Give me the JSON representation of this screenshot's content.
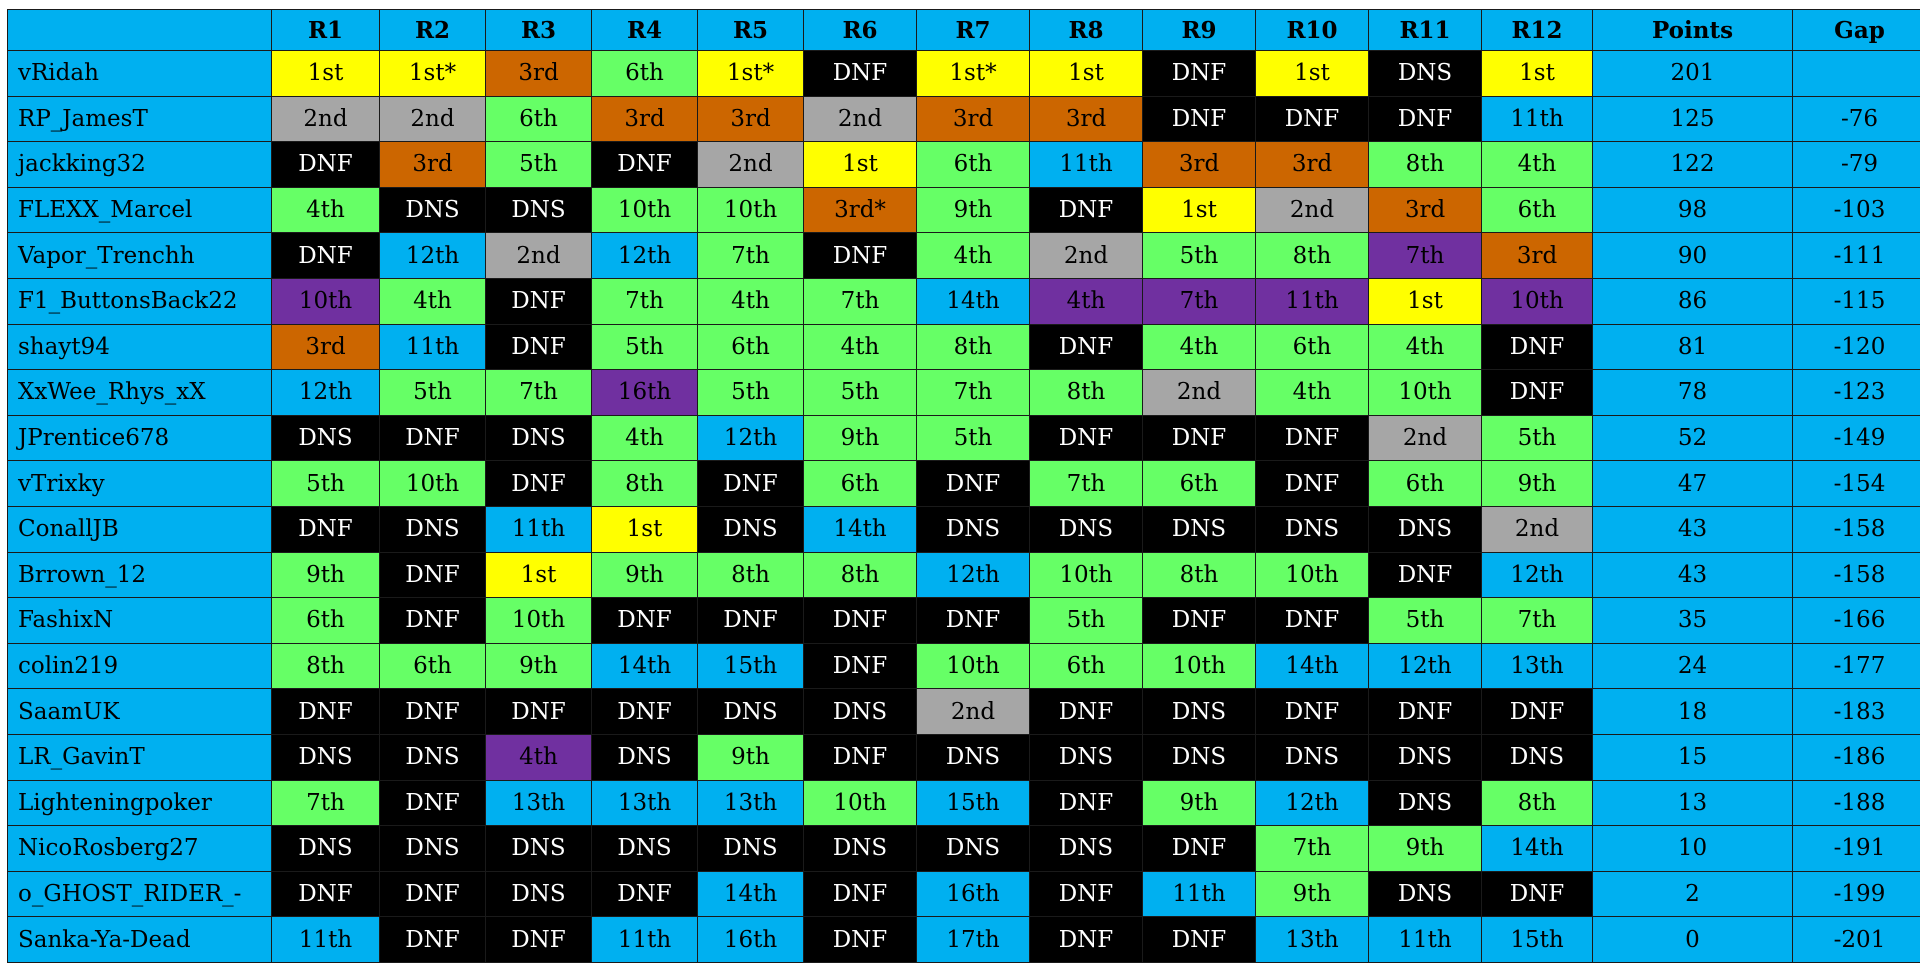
{
  "headers": {
    "driver": "",
    "rounds": [
      "R1",
      "R2",
      "R3",
      "R4",
      "R5",
      "R6",
      "R7",
      "R8",
      "R9",
      "R10",
      "R11",
      "R12"
    ],
    "points": "Points",
    "gap": "Gap"
  },
  "colors": {
    "gold": "#ffff00",
    "silver": "#a6a6a6",
    "bronze": "#cc6600",
    "green": "#66ff66",
    "blue": "#00b0f0",
    "purple": "#7030a0",
    "black": "#000000"
  },
  "rows": [
    {
      "driver": "vRidah",
      "results": [
        [
          "1st",
          "gold"
        ],
        [
          "1st*",
          "gold"
        ],
        [
          "3rd",
          "bronze"
        ],
        [
          "6th",
          "green"
        ],
        [
          "1st*",
          "gold"
        ],
        [
          "DNF",
          "black"
        ],
        [
          "1st*",
          "gold"
        ],
        [
          "1st",
          "gold"
        ],
        [
          "DNF",
          "black"
        ],
        [
          "1st",
          "gold"
        ],
        [
          "DNS",
          "black"
        ],
        [
          "1st",
          "gold"
        ]
      ],
      "points": "201",
      "gap": ""
    },
    {
      "driver": "RP_JamesT",
      "results": [
        [
          "2nd",
          "silver"
        ],
        [
          "2nd",
          "silver"
        ],
        [
          "6th",
          "green"
        ],
        [
          "3rd",
          "bronze"
        ],
        [
          "3rd",
          "bronze"
        ],
        [
          "2nd",
          "silver"
        ],
        [
          "3rd",
          "bronze"
        ],
        [
          "3rd",
          "bronze"
        ],
        [
          "DNF",
          "black"
        ],
        [
          "DNF",
          "black"
        ],
        [
          "DNF",
          "black"
        ],
        [
          "11th",
          "blue"
        ]
      ],
      "points": "125",
      "gap": "-76"
    },
    {
      "driver": "jackking32",
      "results": [
        [
          "DNF",
          "black"
        ],
        [
          "3rd",
          "bronze"
        ],
        [
          "5th",
          "green"
        ],
        [
          "DNF",
          "black"
        ],
        [
          "2nd",
          "silver"
        ],
        [
          "1st",
          "gold"
        ],
        [
          "6th",
          "green"
        ],
        [
          "11th",
          "blue"
        ],
        [
          "3rd",
          "bronze"
        ],
        [
          "3rd",
          "bronze"
        ],
        [
          "8th",
          "green"
        ],
        [
          "4th",
          "green"
        ]
      ],
      "points": "122",
      "gap": "-79"
    },
    {
      "driver": "FLEXX_Marcel",
      "results": [
        [
          "4th",
          "green"
        ],
        [
          "DNS",
          "black"
        ],
        [
          "DNS",
          "black"
        ],
        [
          "10th",
          "green"
        ],
        [
          "10th",
          "green"
        ],
        [
          "3rd*",
          "bronze"
        ],
        [
          "9th",
          "green"
        ],
        [
          "DNF",
          "black"
        ],
        [
          "1st",
          "gold"
        ],
        [
          "2nd",
          "silver"
        ],
        [
          "3rd",
          "bronze"
        ],
        [
          "6th",
          "green"
        ]
      ],
      "points": "98",
      "gap": "-103"
    },
    {
      "driver": "Vapor_Trenchh",
      "results": [
        [
          "DNF",
          "black"
        ],
        [
          "12th",
          "blue"
        ],
        [
          "2nd",
          "silver"
        ],
        [
          "12th",
          "blue"
        ],
        [
          "7th",
          "green"
        ],
        [
          "DNF",
          "black"
        ],
        [
          "4th",
          "green"
        ],
        [
          "2nd",
          "silver"
        ],
        [
          "5th",
          "green"
        ],
        [
          "8th",
          "green"
        ],
        [
          "7th",
          "purple"
        ],
        [
          "3rd",
          "bronze"
        ]
      ],
      "points": "90",
      "gap": "-111"
    },
    {
      "driver": "F1_ButtonsBack22",
      "results": [
        [
          "10th",
          "purple"
        ],
        [
          "4th",
          "green"
        ],
        [
          "DNF",
          "black"
        ],
        [
          "7th",
          "green"
        ],
        [
          "4th",
          "green"
        ],
        [
          "7th",
          "green"
        ],
        [
          "14th",
          "blue"
        ],
        [
          "4th",
          "purple"
        ],
        [
          "7th",
          "purple"
        ],
        [
          "11th",
          "purple"
        ],
        [
          "1st",
          "gold"
        ],
        [
          "10th",
          "purple"
        ]
      ],
      "points": "86",
      "gap": "-115"
    },
    {
      "driver": "shayt94",
      "results": [
        [
          "3rd",
          "bronze"
        ],
        [
          "11th",
          "blue"
        ],
        [
          "DNF",
          "black"
        ],
        [
          "5th",
          "green"
        ],
        [
          "6th",
          "green"
        ],
        [
          "4th",
          "green"
        ],
        [
          "8th",
          "green"
        ],
        [
          "DNF",
          "black"
        ],
        [
          "4th",
          "green"
        ],
        [
          "6th",
          "green"
        ],
        [
          "4th",
          "green"
        ],
        [
          "DNF",
          "black"
        ]
      ],
      "points": "81",
      "gap": "-120"
    },
    {
      "driver": "XxWee_Rhys_xX",
      "results": [
        [
          "12th",
          "blue"
        ],
        [
          "5th",
          "green"
        ],
        [
          "7th",
          "green"
        ],
        [
          "16th",
          "purple"
        ],
        [
          "5th",
          "green"
        ],
        [
          "5th",
          "green"
        ],
        [
          "7th",
          "green"
        ],
        [
          "8th",
          "green"
        ],
        [
          "2nd",
          "silver"
        ],
        [
          "4th",
          "green"
        ],
        [
          "10th",
          "green"
        ],
        [
          "DNF",
          "black"
        ]
      ],
      "points": "78",
      "gap": "-123"
    },
    {
      "driver": "JPrentice678",
      "results": [
        [
          "DNS",
          "black"
        ],
        [
          "DNF",
          "black"
        ],
        [
          "DNS",
          "black"
        ],
        [
          "4th",
          "green"
        ],
        [
          "12th",
          "blue"
        ],
        [
          "9th",
          "green"
        ],
        [
          "5th",
          "green"
        ],
        [
          "DNF",
          "black"
        ],
        [
          "DNF",
          "black"
        ],
        [
          "DNF",
          "black"
        ],
        [
          "2nd",
          "silver"
        ],
        [
          "5th",
          "green"
        ]
      ],
      "points": "52",
      "gap": "-149"
    },
    {
      "driver": "vTrixky",
      "results": [
        [
          "5th",
          "green"
        ],
        [
          "10th",
          "green"
        ],
        [
          "DNF",
          "black"
        ],
        [
          "8th",
          "green"
        ],
        [
          "DNF",
          "black"
        ],
        [
          "6th",
          "green"
        ],
        [
          "DNF",
          "black"
        ],
        [
          "7th",
          "green"
        ],
        [
          "6th",
          "green"
        ],
        [
          "DNF",
          "black"
        ],
        [
          "6th",
          "green"
        ],
        [
          "9th",
          "green"
        ]
      ],
      "points": "47",
      "gap": "-154"
    },
    {
      "driver": "ConallJB",
      "results": [
        [
          "DNF",
          "black"
        ],
        [
          "DNS",
          "black"
        ],
        [
          "11th",
          "blue"
        ],
        [
          "1st",
          "gold"
        ],
        [
          "DNS",
          "black"
        ],
        [
          "14th",
          "blue"
        ],
        [
          "DNS",
          "black"
        ],
        [
          "DNS",
          "black"
        ],
        [
          "DNS",
          "black"
        ],
        [
          "DNS",
          "black"
        ],
        [
          "DNS",
          "black"
        ],
        [
          "2nd",
          "silver"
        ]
      ],
      "points": "43",
      "gap": "-158"
    },
    {
      "driver": "Brrown_12",
      "results": [
        [
          "9th",
          "green"
        ],
        [
          "DNF",
          "black"
        ],
        [
          "1st",
          "gold"
        ],
        [
          "9th",
          "green"
        ],
        [
          "8th",
          "green"
        ],
        [
          "8th",
          "green"
        ],
        [
          "12th",
          "blue"
        ],
        [
          "10th",
          "green"
        ],
        [
          "8th",
          "green"
        ],
        [
          "10th",
          "green"
        ],
        [
          "DNF",
          "black"
        ],
        [
          "12th",
          "blue"
        ]
      ],
      "points": "43",
      "gap": "-158"
    },
    {
      "driver": "FashixN",
      "results": [
        [
          "6th",
          "green"
        ],
        [
          "DNF",
          "black"
        ],
        [
          "10th",
          "green"
        ],
        [
          "DNF",
          "black"
        ],
        [
          "DNF",
          "black"
        ],
        [
          "DNF",
          "black"
        ],
        [
          "DNF",
          "black"
        ],
        [
          "5th",
          "green"
        ],
        [
          "DNF",
          "black"
        ],
        [
          "DNF",
          "black"
        ],
        [
          "5th",
          "green"
        ],
        [
          "7th",
          "green"
        ]
      ],
      "points": "35",
      "gap": "-166"
    },
    {
      "driver": "colin219",
      "results": [
        [
          "8th",
          "green"
        ],
        [
          "6th",
          "green"
        ],
        [
          "9th",
          "green"
        ],
        [
          "14th",
          "blue"
        ],
        [
          "15th",
          "blue"
        ],
        [
          "DNF",
          "black"
        ],
        [
          "10th",
          "green"
        ],
        [
          "6th",
          "green"
        ],
        [
          "10th",
          "green"
        ],
        [
          "14th",
          "blue"
        ],
        [
          "12th",
          "blue"
        ],
        [
          "13th",
          "blue"
        ]
      ],
      "points": "24",
      "gap": "-177"
    },
    {
      "driver": "SaamUK",
      "results": [
        [
          "DNF",
          "black"
        ],
        [
          "DNF",
          "black"
        ],
        [
          "DNF",
          "black"
        ],
        [
          "DNF",
          "black"
        ],
        [
          "DNS",
          "black"
        ],
        [
          "DNS",
          "black"
        ],
        [
          "2nd",
          "silver"
        ],
        [
          "DNF",
          "black"
        ],
        [
          "DNS",
          "black"
        ],
        [
          "DNF",
          "black"
        ],
        [
          "DNF",
          "black"
        ],
        [
          "DNF",
          "black"
        ]
      ],
      "points": "18",
      "gap": "-183"
    },
    {
      "driver": "LR_GavinT",
      "results": [
        [
          "DNS",
          "black"
        ],
        [
          "DNS",
          "black"
        ],
        [
          "4th",
          "purple"
        ],
        [
          "DNS",
          "black"
        ],
        [
          "9th",
          "green"
        ],
        [
          "DNF",
          "black"
        ],
        [
          "DNS",
          "black"
        ],
        [
          "DNS",
          "black"
        ],
        [
          "DNS",
          "black"
        ],
        [
          "DNS",
          "black"
        ],
        [
          "DNS",
          "black"
        ],
        [
          "DNS",
          "black"
        ]
      ],
      "points": "15",
      "gap": "-186"
    },
    {
      "driver": "Lighteningpoker",
      "results": [
        [
          "7th",
          "green"
        ],
        [
          "DNF",
          "black"
        ],
        [
          "13th",
          "blue"
        ],
        [
          "13th",
          "blue"
        ],
        [
          "13th",
          "blue"
        ],
        [
          "10th",
          "green"
        ],
        [
          "15th",
          "blue"
        ],
        [
          "DNF",
          "black"
        ],
        [
          "9th",
          "green"
        ],
        [
          "12th",
          "blue"
        ],
        [
          "DNS",
          "black"
        ],
        [
          "8th",
          "green"
        ]
      ],
      "points": "13",
      "gap": "-188"
    },
    {
      "driver": "NicoRosberg27",
      "results": [
        [
          "DNS",
          "black"
        ],
        [
          "DNS",
          "black"
        ],
        [
          "DNS",
          "black"
        ],
        [
          "DNS",
          "black"
        ],
        [
          "DNS",
          "black"
        ],
        [
          "DNS",
          "black"
        ],
        [
          "DNS",
          "black"
        ],
        [
          "DNS",
          "black"
        ],
        [
          "DNF",
          "black"
        ],
        [
          "7th",
          "green"
        ],
        [
          "9th",
          "green"
        ],
        [
          "14th",
          "blue"
        ]
      ],
      "points": "10",
      "gap": "-191"
    },
    {
      "driver": "o_GHOST_RIDER_-",
      "results": [
        [
          "DNF",
          "black"
        ],
        [
          "DNF",
          "black"
        ],
        [
          "DNS",
          "black"
        ],
        [
          "DNF",
          "black"
        ],
        [
          "14th",
          "blue"
        ],
        [
          "DNF",
          "black"
        ],
        [
          "16th",
          "blue"
        ],
        [
          "DNF",
          "black"
        ],
        [
          "11th",
          "blue"
        ],
        [
          "9th",
          "green"
        ],
        [
          "DNS",
          "black"
        ],
        [
          "DNF",
          "black"
        ]
      ],
      "points": "2",
      "gap": "-199"
    },
    {
      "driver": "Sanka-Ya-Dead",
      "results": [
        [
          "11th",
          "blue"
        ],
        [
          "DNF",
          "black"
        ],
        [
          "DNF",
          "black"
        ],
        [
          "11th",
          "blue"
        ],
        [
          "16th",
          "blue"
        ],
        [
          "DNF",
          "black"
        ],
        [
          "17th",
          "blue"
        ],
        [
          "DNF",
          "black"
        ],
        [
          "DNF",
          "black"
        ],
        [
          "13th",
          "blue"
        ],
        [
          "11th",
          "blue"
        ],
        [
          "15th",
          "blue"
        ]
      ],
      "points": "0",
      "gap": "-201"
    }
  ]
}
